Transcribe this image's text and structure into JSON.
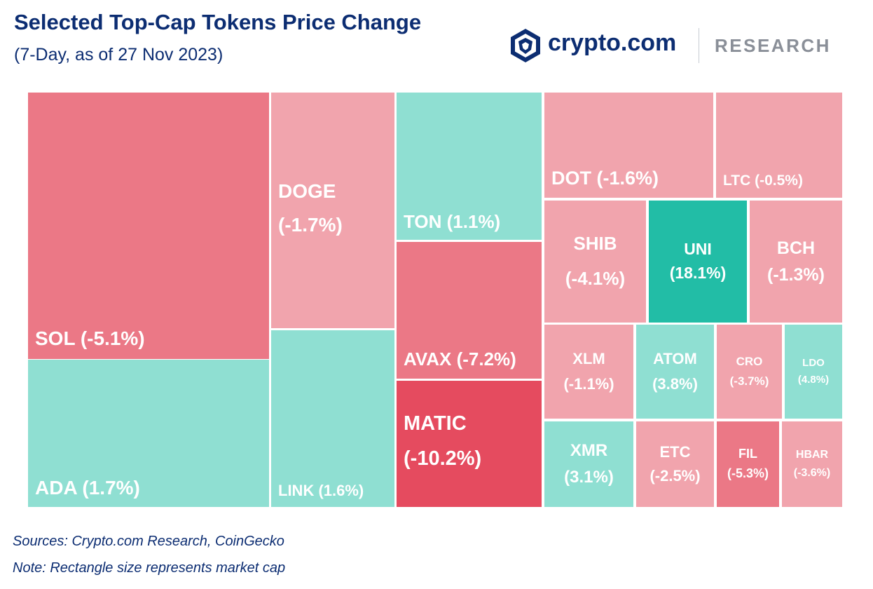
{
  "header": {
    "title": "Selected Top-Cap Tokens Price Change",
    "subtitle": "(7-Day, as of 27 Nov 2023)"
  },
  "brand": {
    "name": "crypto.com",
    "division": "RESEARCH",
    "logo_icon": "lion-shield-icon"
  },
  "colors": {
    "title": "#0c2d72",
    "positive_light": "#8fdfd2",
    "positive_strong": "#22bda6",
    "negative_light": "#f1a4ad",
    "negative_mid": "#eb7886",
    "negative_strong": "#e54b5f"
  },
  "chart_data": {
    "type": "treemap",
    "title": "Selected Top-Cap Tokens Price Change",
    "subtitle": "(7-Day, as of 27 Nov 2023)",
    "value_unit": "%",
    "tiles": [
      {
        "symbol": "SOL",
        "change": -5.1,
        "label": "SOL (-5.1%)"
      },
      {
        "symbol": "ADA",
        "change": 1.7,
        "label": "ADA (1.7%)"
      },
      {
        "symbol": "DOGE",
        "change": -1.7,
        "label": "DOGE",
        "label2": "(-1.7%)"
      },
      {
        "symbol": "LINK",
        "change": 1.6,
        "label": "LINK (1.6%)"
      },
      {
        "symbol": "TON",
        "change": 1.1,
        "label": "TON (1.1%)"
      },
      {
        "symbol": "AVAX",
        "change": -7.2,
        "label": "AVAX (-7.2%)"
      },
      {
        "symbol": "MATIC",
        "change": -10.2,
        "label": "MATIC",
        "label2": "(-10.2%)"
      },
      {
        "symbol": "DOT",
        "change": -1.6,
        "label": "DOT (-1.6%)"
      },
      {
        "symbol": "LTC",
        "change": -0.5,
        "label": "LTC (-0.5%)"
      },
      {
        "symbol": "SHIB",
        "change": -4.1,
        "label": "SHIB",
        "label2": "(-4.1%)"
      },
      {
        "symbol": "UNI",
        "change": 18.1,
        "label": "UNI",
        "label2": "(18.1%)"
      },
      {
        "symbol": "BCH",
        "change": -1.3,
        "label": "BCH",
        "label2": "(-1.3%)"
      },
      {
        "symbol": "XLM",
        "change": -1.1,
        "label": "XLM",
        "label2": "(-1.1%)"
      },
      {
        "symbol": "ATOM",
        "change": 3.8,
        "label": "ATOM",
        "label2": "(3.8%)"
      },
      {
        "symbol": "CRO",
        "change": -3.7,
        "label": "CRO",
        "label2": "(-3.7%)"
      },
      {
        "symbol": "LDO",
        "change": 4.8,
        "label": "LDO",
        "label2": "(4.8%)"
      },
      {
        "symbol": "XMR",
        "change": 3.1,
        "label": "XMR",
        "label2": "(3.1%)"
      },
      {
        "symbol": "ETC",
        "change": -2.5,
        "label": "ETC",
        "label2": "(-2.5%)"
      },
      {
        "symbol": "FIL",
        "change": -5.3,
        "label": "FIL",
        "label2": "(-5.3%)"
      },
      {
        "symbol": "HBAR",
        "change": -3.6,
        "label": "HBAR",
        "label2": "(-3.6%)"
      }
    ]
  },
  "footer": {
    "sources": "Sources: Crypto.com Research, CoinGecko",
    "note": "Note: Rectangle size represents market cap"
  }
}
